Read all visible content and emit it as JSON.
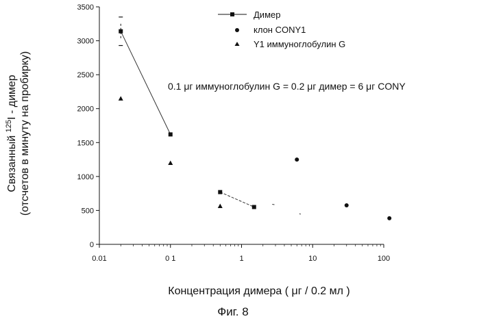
{
  "chart_data": {
    "type": "scatter",
    "x_scale": "log",
    "xlim": [
      0.01,
      100
    ],
    "ylim": [
      0,
      3500
    ],
    "x_ticks": [
      0.01,
      0.1,
      1,
      10,
      100
    ],
    "x_tick_labels": [
      "0.01",
      "0 1",
      "1",
      "10",
      "100"
    ],
    "y_ticks": [
      0,
      500,
      1000,
      1500,
      2000,
      2500,
      3000,
      3500
    ],
    "y_tick_labels": [
      "0",
      "500",
      "1000",
      "1500",
      "2000",
      "2500",
      "3000",
      "3500"
    ],
    "xlabel": "Концентрация димера ( μг / 0.2 мл )",
    "ylabel_line1_prefix": "Связанный ",
    "ylabel_line1_sup": "125",
    "ylabel_line1_suffix": "I - димер",
    "ylabel_line2": "(отсчетов в минуту на пробирку)",
    "caption": "Фиг. 8",
    "annotation": "0.1 μг иммуноглобулин G = 0.2 μг димер = 6 μг CONY",
    "grid": false,
    "legend_position": "top-right",
    "series": [
      {
        "name": "Димер",
        "marker": "square",
        "x": [
          0.02,
          0.1,
          0.5,
          1.5
        ],
        "y": [
          3140,
          1620,
          770,
          550
        ]
      },
      {
        "name": "клон CONY1",
        "marker": "circle",
        "x": [
          6,
          30,
          120
        ],
        "y": [
          1250,
          575,
          385
        ]
      },
      {
        "name": "Y1 иммуноглобулин G",
        "marker": "triangle",
        "x": [
          0.02,
          0.1,
          0.5
        ],
        "y": [
          2150,
          1200,
          565
        ]
      }
    ]
  }
}
